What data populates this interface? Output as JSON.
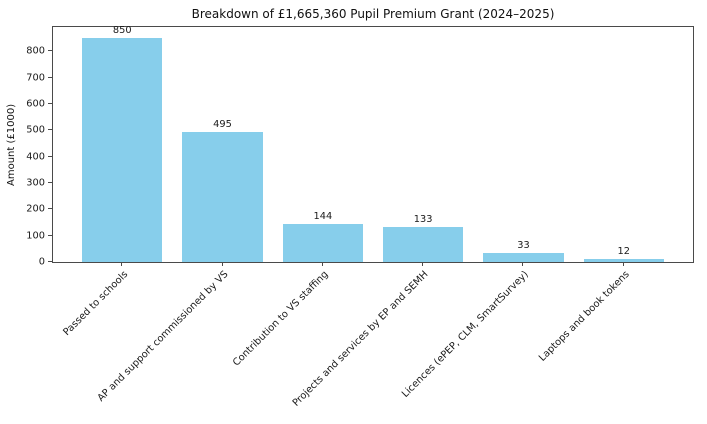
{
  "chart_data": {
    "type": "bar",
    "title": "Breakdown of £1,665,360 Pupil Premium Grant (2024–2025)",
    "ylabel": "Amount (£1000)",
    "xlabel": "",
    "categories": [
      "Passed to schools",
      "AP and support commissioned by VS",
      "Contribution to VS staffing",
      "Projects and services by EP and SEMH",
      "Licences (ePEP, CLM, SmartSurvey)",
      "Laptops and book tokens"
    ],
    "values": [
      850,
      495,
      144,
      133,
      33,
      12
    ],
    "bar_value_labels": [
      "850",
      "495",
      "144",
      "133",
      "33",
      "12"
    ],
    "yticks": [
      0,
      100,
      200,
      300,
      400,
      500,
      600,
      700,
      800
    ],
    "ylim": [
      0,
      892.5
    ],
    "grid": false,
    "legend_position": "none",
    "bar_color": "#87ceeb",
    "axis_color": "#4a4a4a",
    "text_color": "#1a1a1a",
    "background_color": "#ffffff"
  }
}
